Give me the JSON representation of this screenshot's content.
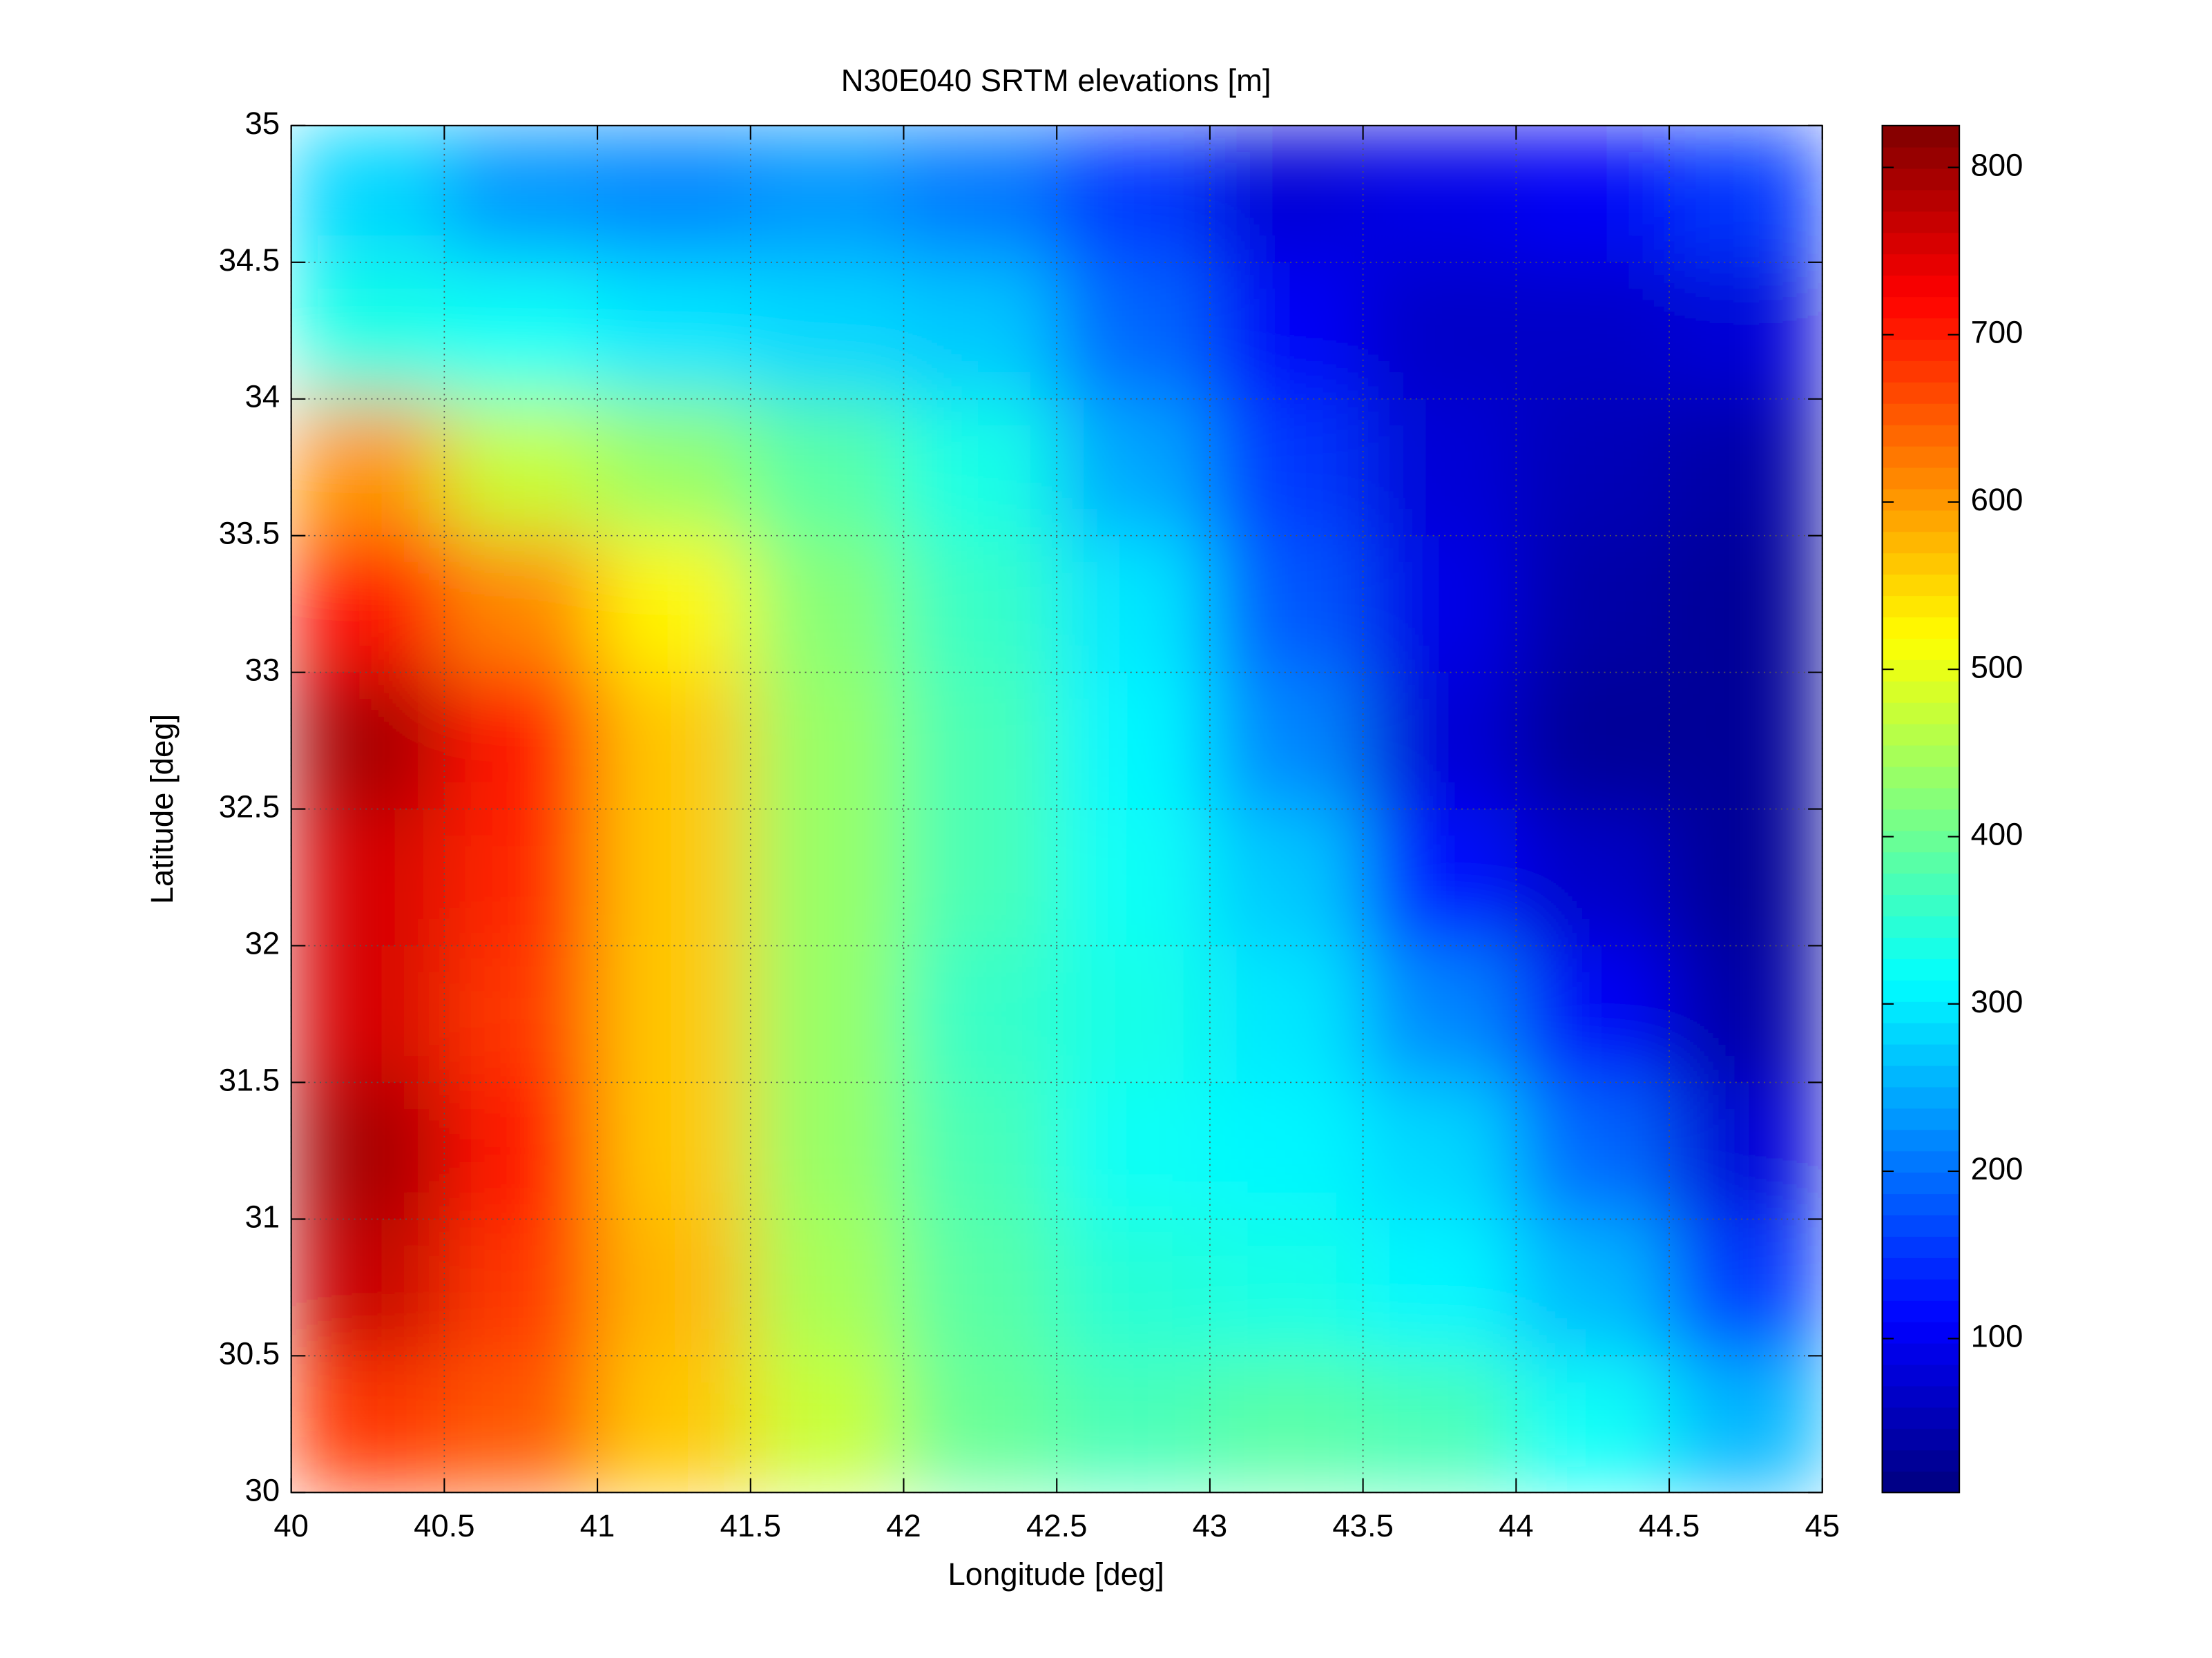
{
  "chart_data": {
    "type": "heatmap",
    "title": "N30E040 SRTM elevations [m]",
    "x_label": "Longitude [deg]",
    "y_label": "Latitude [deg]",
    "xlim": [
      40,
      45
    ],
    "ylim": [
      30,
      35
    ],
    "xticks": [
      40,
      40.5,
      41,
      41.5,
      42,
      42.5,
      43,
      43.5,
      44,
      44.5,
      45
    ],
    "yticks": [
      30,
      30.5,
      31,
      31.5,
      32,
      32.5,
      33,
      33.5,
      34,
      34.5,
      35
    ],
    "grid": true,
    "colormap": "jet",
    "clim": [
      8,
      825
    ],
    "cticks": [
      100,
      200,
      300,
      400,
      500,
      600,
      700,
      800
    ],
    "z": [
      [
        280,
        230,
        220,
        230,
        200,
        150,
        80,
        90,
        100,
        150
      ],
      [
        330,
        320,
        290,
        280,
        270,
        190,
        110,
        70,
        60,
        80
      ],
      [
        600,
        480,
        430,
        380,
        330,
        250,
        150,
        80,
        50,
        40
      ],
      [
        720,
        620,
        520,
        420,
        360,
        300,
        180,
        90,
        40,
        30
      ],
      [
        790,
        700,
        560,
        440,
        370,
        310,
        220,
        80,
        30,
        25
      ],
      [
        760,
        690,
        560,
        440,
        370,
        320,
        270,
        120,
        60,
        30
      ],
      [
        760,
        680,
        560,
        430,
        360,
        330,
        300,
        220,
        110,
        40
      ],
      [
        790,
        700,
        560,
        440,
        370,
        320,
        310,
        280,
        190,
        80
      ],
      [
        770,
        680,
        570,
        450,
        380,
        340,
        330,
        310,
        260,
        150
      ],
      [
        680,
        650,
        560,
        470,
        400,
        370,
        380,
        370,
        320,
        260
      ]
    ]
  }
}
